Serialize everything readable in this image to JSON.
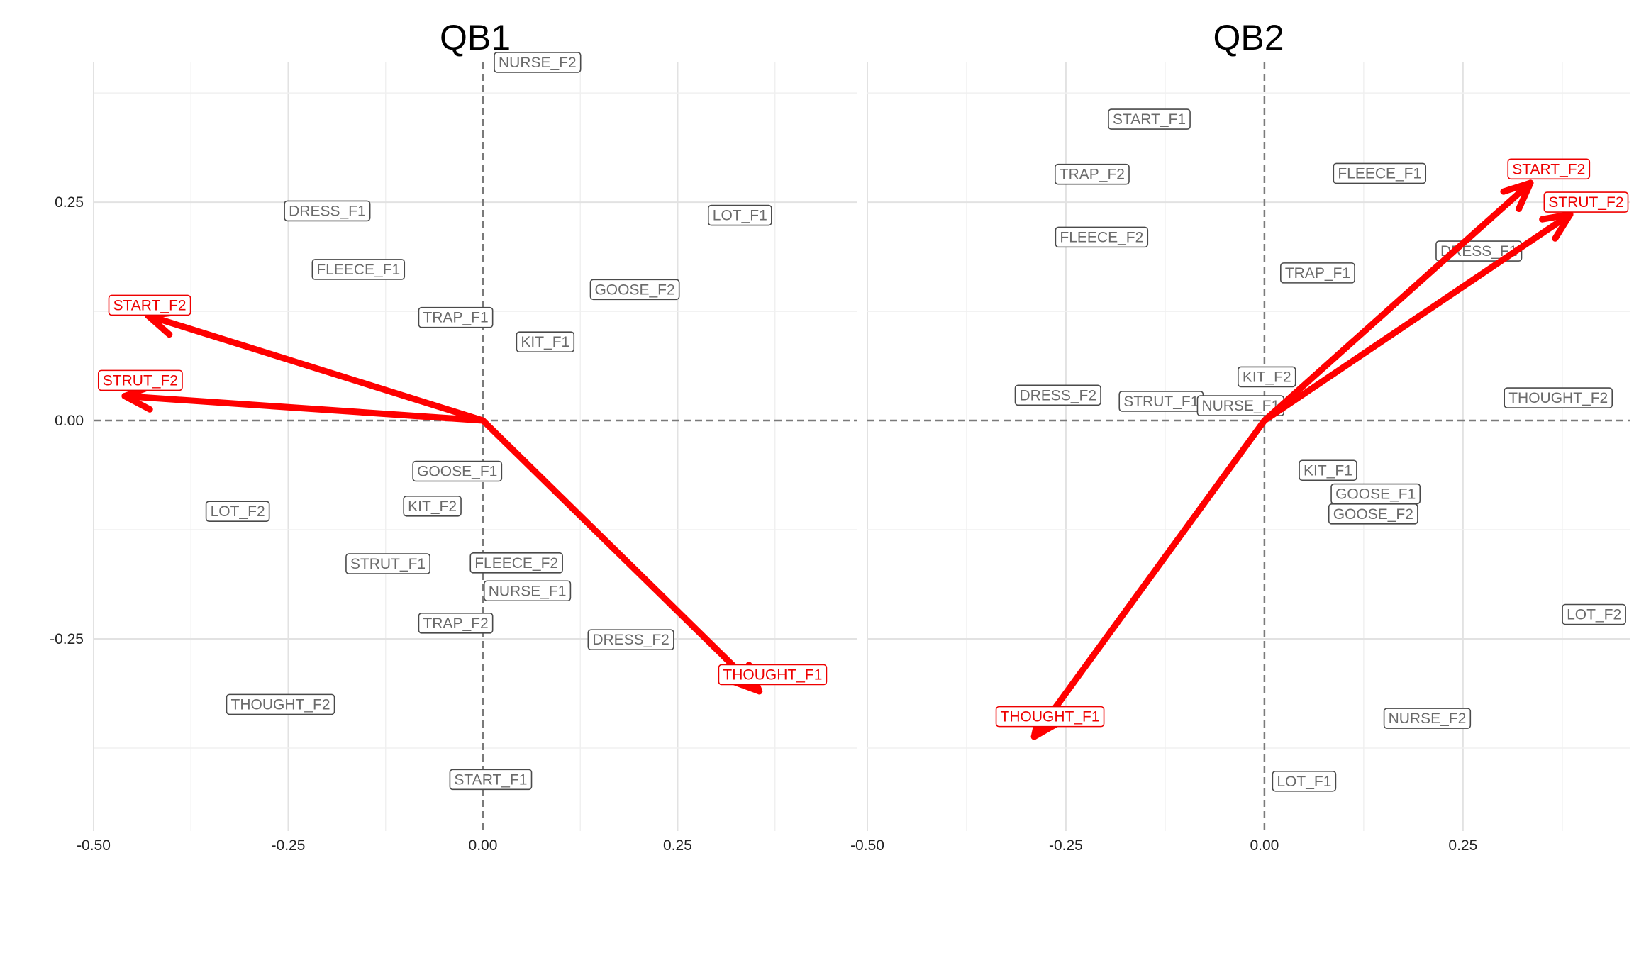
{
  "chart_data": [
    {
      "type": "scatter",
      "title": "QB1",
      "xlabel": "",
      "ylabel": "",
      "xlim": [
        -0.5,
        0.48
      ],
      "ylim": [
        -0.47,
        0.41
      ],
      "x_ticks": [
        "-0.50",
        "-0.25",
        "0.00",
        "0.25"
      ],
      "x_tick_values": [
        -0.5,
        -0.25,
        0,
        0.25
      ],
      "y_ticks": [
        "0.25",
        "0.00",
        "-0.25"
      ],
      "y_tick_values": [
        0.25,
        0,
        -0.25
      ],
      "grid": true,
      "reference_lines": {
        "x": 0,
        "y": 0,
        "style": "dashed"
      },
      "points": [
        {
          "label": "NURSE_F2",
          "x": 0.07,
          "y": 0.41
        },
        {
          "label": "DRESS_F1",
          "x": -0.2,
          "y": 0.24
        },
        {
          "label": "LOT_F1",
          "x": 0.33,
          "y": 0.235
        },
        {
          "label": "FLEECE_F1",
          "x": -0.16,
          "y": 0.173
        },
        {
          "label": "GOOSE_F2",
          "x": 0.195,
          "y": 0.15
        },
        {
          "label": "TRAP_F1",
          "x": -0.035,
          "y": 0.118
        },
        {
          "label": "KIT_F1",
          "x": 0.08,
          "y": 0.09
        },
        {
          "label": "GOOSE_F1",
          "x": -0.033,
          "y": -0.058
        },
        {
          "label": "LOT_F2",
          "x": -0.315,
          "y": -0.104
        },
        {
          "label": "KIT_F2",
          "x": -0.065,
          "y": -0.098
        },
        {
          "label": "STRUT_F1",
          "x": -0.122,
          "y": -0.164
        },
        {
          "label": "FLEECE_F2",
          "x": 0.043,
          "y": -0.163
        },
        {
          "label": "NURSE_F1",
          "x": 0.057,
          "y": -0.195
        },
        {
          "label": "TRAP_F2",
          "x": -0.035,
          "y": -0.232
        },
        {
          "label": "DRESS_F2",
          "x": 0.19,
          "y": -0.251
        },
        {
          "label": "THOUGHT_F2",
          "x": -0.26,
          "y": -0.325
        },
        {
          "label": "START_F1",
          "x": 0.01,
          "y": -0.411
        }
      ],
      "supplementary": [
        {
          "label": "START_F2",
          "x": -0.43,
          "y": 0.12,
          "label_x": -0.428,
          "label_y": 0.132
        },
        {
          "label": "STRUT_F2",
          "x": -0.46,
          "y": 0.028,
          "label_x": -0.44,
          "label_y": 0.046
        },
        {
          "label": "THOUGHT_F1",
          "x": 0.355,
          "y": -0.31,
          "label_x": 0.372,
          "label_y": -0.291
        }
      ]
    },
    {
      "type": "scatter",
      "title": "QB2",
      "xlabel": "",
      "ylabel": "",
      "xlim": [
        -0.5,
        0.46
      ],
      "ylim": [
        -0.47,
        0.41
      ],
      "x_ticks": [
        "-0.50",
        "-0.25",
        "0.00",
        "0.25"
      ],
      "x_tick_values": [
        -0.5,
        -0.25,
        0,
        0.25
      ],
      "y_ticks": [],
      "y_tick_values": [
        0.25,
        0,
        -0.25
      ],
      "grid": true,
      "reference_lines": {
        "x": 0,
        "y": 0,
        "style": "dashed"
      },
      "points": [
        {
          "label": "START_F1",
          "x": -0.145,
          "y": 0.345
        },
        {
          "label": "TRAP_F2",
          "x": -0.217,
          "y": 0.282
        },
        {
          "label": "FLEECE_F1",
          "x": 0.145,
          "y": 0.283
        },
        {
          "label": "FLEECE_F2",
          "x": -0.205,
          "y": 0.21
        },
        {
          "label": "TRAP_F1",
          "x": 0.067,
          "y": 0.169
        },
        {
          "label": "DRESS_F1",
          "x": 0.27,
          "y": 0.194
        },
        {
          "label": "KIT_F2",
          "x": 0.003,
          "y": 0.05
        },
        {
          "label": "DRESS_F2",
          "x": -0.26,
          "y": 0.029
        },
        {
          "label": "STRUT_F1",
          "x": -0.13,
          "y": 0.022
        },
        {
          "label": "NURSE_F1",
          "x": -0.03,
          "y": 0.017
        },
        {
          "label": "THOUGHT_F2",
          "x": 0.37,
          "y": 0.026
        },
        {
          "label": "KIT_F1",
          "x": 0.08,
          "y": -0.057
        },
        {
          "label": "GOOSE_F1",
          "x": 0.14,
          "y": -0.084
        },
        {
          "label": "GOOSE_F2",
          "x": 0.137,
          "y": -0.107
        },
        {
          "label": "LOT_F2",
          "x": 0.415,
          "y": -0.222
        },
        {
          "label": "NURSE_F2",
          "x": 0.205,
          "y": -0.341
        },
        {
          "label": "LOT_F1",
          "x": 0.05,
          "y": -0.413
        }
      ],
      "supplementary": [
        {
          "label": "START_F2",
          "x": 0.335,
          "y": 0.272,
          "label_x": 0.358,
          "label_y": 0.288
        },
        {
          "label": "STRUT_F2",
          "x": 0.385,
          "y": 0.236,
          "label_x": 0.405,
          "label_y": 0.25
        },
        {
          "label": "THOUGHT_F1",
          "x": -0.29,
          "y": -0.362,
          "label_x": -0.27,
          "label_y": -0.339
        }
      ]
    }
  ]
}
